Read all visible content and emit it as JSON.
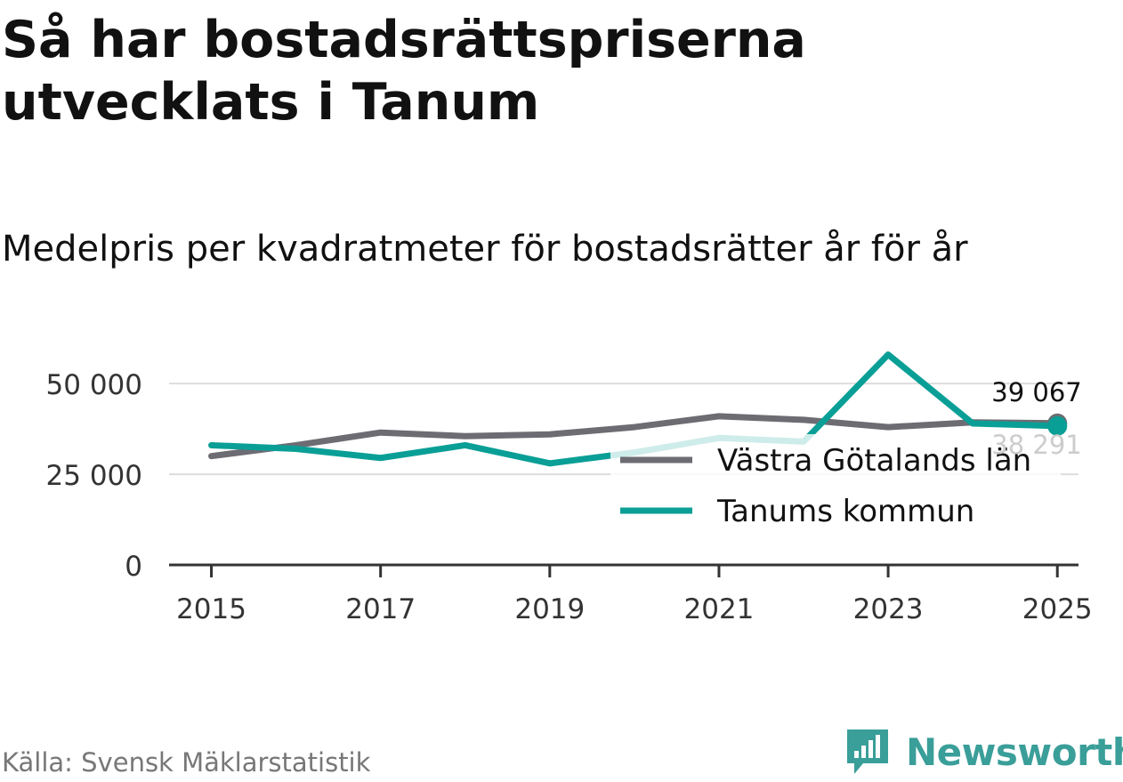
{
  "title": "Så har bostadsrättspriserna utvecklats i Tanum",
  "subtitle": "Medelpris per kvadratmeter för bostadsrätter år för år",
  "source": "Källa: Svensk Mäklarstatistik",
  "brand": "Newsworthy",
  "colors": {
    "vastra": "#6d6c73",
    "tanum": "#0a9f96",
    "grid": "#dddddd",
    "axis": "#333333",
    "brand": "#3a9e99"
  },
  "chart_data": {
    "type": "line",
    "x": [
      2015,
      2016,
      2017,
      2018,
      2019,
      2020,
      2021,
      2022,
      2023,
      2024,
      2025
    ],
    "series": [
      {
        "name": "Västra Götalands län",
        "values": [
          30000,
          33000,
          36500,
          35500,
          36000,
          38000,
          41000,
          40000,
          38000,
          39300,
          39067
        ],
        "end_label": "39 067"
      },
      {
        "name": "Tanums kommun",
        "values": [
          33000,
          32000,
          29500,
          33000,
          28000,
          31000,
          35000,
          34000,
          58000,
          39000,
          38291
        ],
        "end_label": "38 291"
      }
    ],
    "y_ticks": [
      0,
      25000,
      50000
    ],
    "y_tick_labels": [
      "0",
      "25 000",
      "50 000"
    ],
    "x_ticks": [
      2015,
      2017,
      2019,
      2021,
      2023,
      2025
    ],
    "x_tick_labels": [
      "2015",
      "2017",
      "2019",
      "2021",
      "2023",
      "2025"
    ],
    "xlim": [
      2014.5,
      2025.25
    ],
    "ylim": [
      0,
      65000
    ],
    "legend_position": "bottom-right",
    "grid": true
  }
}
